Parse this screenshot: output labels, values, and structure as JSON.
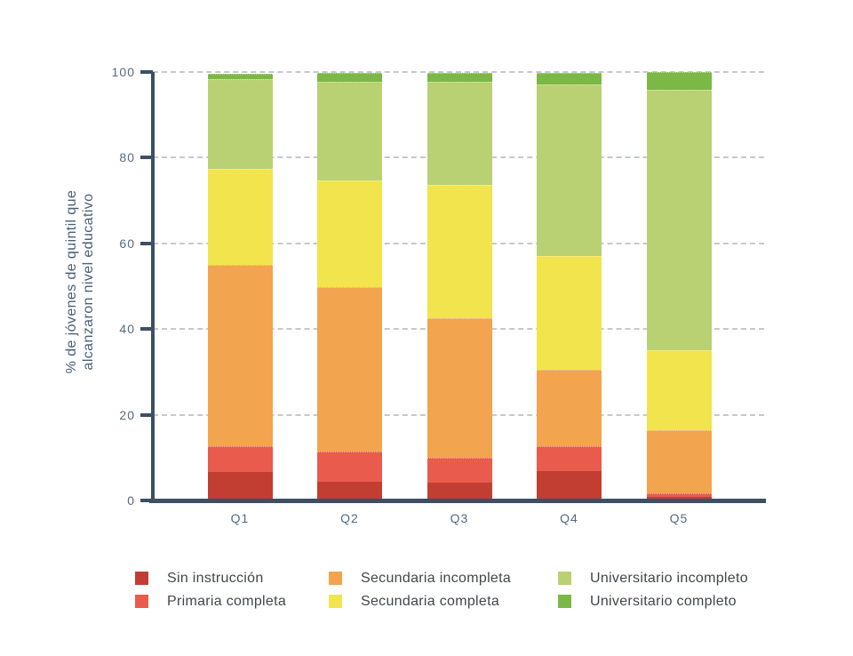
{
  "chart_data": {
    "type": "bar",
    "stacked": true,
    "categories": [
      "Q1",
      "Q2",
      "Q3",
      "Q4",
      "Q5"
    ],
    "series": [
      {
        "name": "Sin instrucción",
        "color": "#c23e33",
        "values": [
          6.7,
          4.4,
          4.2,
          6.9,
          0.8
        ]
      },
      {
        "name": "Primaria completa",
        "color": "#e95b4d",
        "values": [
          6.0,
          7.0,
          5.8,
          5.8,
          0.9
        ]
      },
      {
        "name": "Secundaria incompleta",
        "color": "#f2a44f",
        "values": [
          42.3,
          38.4,
          32.5,
          17.8,
          14.6
        ]
      },
      {
        "name": "Secundaria completa",
        "color": "#f1e44c",
        "values": [
          22.3,
          24.9,
          31.2,
          26.5,
          18.7
        ]
      },
      {
        "name": "Universitario incompleto",
        "color": "#b9d173",
        "values": [
          21.1,
          23.0,
          24.0,
          40.0,
          60.8
        ]
      },
      {
        "name": "Universitario completo",
        "color": "#7cb845",
        "values": [
          1.2,
          2.1,
          2.2,
          2.9,
          4.2
        ]
      }
    ],
    "ylabel_lines": [
      "% de jóvenes de quintil que",
      "alcanzaron nivel educativo"
    ],
    "xlabel": "",
    "title": "",
    "yticks": [
      0,
      20,
      40,
      60,
      80,
      100
    ],
    "ylim": [
      0,
      100
    ],
    "grid": "horizontal-dashed",
    "legend_position": "bottom"
  },
  "style": {
    "axis_color": "#3d4f63",
    "tick_label_color": "#56697e",
    "ylabel_color": "#4b6076",
    "legend_text_color": "#42464b",
    "grid_color": "#c5c9cd",
    "background": "#ffffff"
  }
}
